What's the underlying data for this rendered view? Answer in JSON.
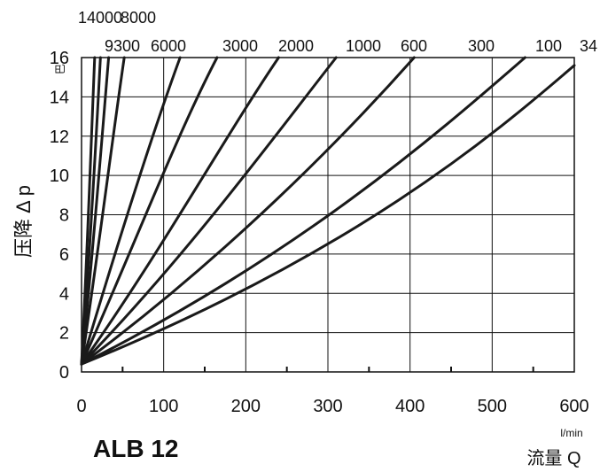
{
  "chart_data": {
    "type": "line",
    "title": "ALB 12",
    "xlabel": "流量 Q",
    "ylabel": "压降 Δ p",
    "x_unit": "l/min",
    "y_unit": "巴",
    "xlim": [
      0,
      600
    ],
    "ylim": [
      0,
      16
    ],
    "grid": true,
    "x_ticks": [
      "0",
      "100",
      "200",
      "300",
      "400",
      "500",
      "600"
    ],
    "y_ticks": [
      "0",
      "2",
      "4",
      "6",
      "8",
      "10",
      "12",
      "14",
      "16"
    ],
    "series": [
      {
        "name": "14000",
        "x": [
          0,
          7,
          12,
          16
        ],
        "y": [
          0.4,
          6,
          12,
          16
        ]
      },
      {
        "name": "8000",
        "x": [
          0,
          10,
          18,
          23
        ],
        "y": [
          0.4,
          6,
          12,
          16
        ]
      },
      {
        "name": "9300",
        "x": [
          0,
          14,
          25,
          33
        ],
        "y": [
          0.4,
          6,
          12,
          16
        ]
      },
      {
        "name": "6000",
        "x": [
          0,
          20,
          38,
          52
        ],
        "y": [
          0.4,
          6,
          12,
          16
        ]
      },
      {
        "name": "3000",
        "x": [
          0,
          40,
          85,
          120
        ],
        "y": [
          0.4,
          6,
          12,
          16
        ]
      },
      {
        "name": "2000",
        "x": [
          0,
          60,
          115,
          165
        ],
        "y": [
          0.4,
          6,
          12,
          16
        ]
      },
      {
        "name": "1000",
        "x": [
          0,
          95,
          175,
          240
        ],
        "y": [
          0.4,
          6,
          12,
          16
        ]
      },
      {
        "name": "600",
        "x": [
          0,
          130,
          235,
          310
        ],
        "y": [
          0.4,
          6,
          12,
          16
        ]
      },
      {
        "name": "300",
        "x": [
          0,
          180,
          320,
          405
        ],
        "y": [
          0.4,
          6,
          12,
          16
        ]
      },
      {
        "name": "100",
        "x": [
          0,
          265,
          430,
          540
        ],
        "y": [
          0.4,
          6,
          12,
          16
        ]
      },
      {
        "name": "34",
        "x": [
          0,
          330,
          500,
          600
        ],
        "y": [
          0.4,
          6,
          12,
          15.6
        ]
      }
    ],
    "top_labels": [
      "14000",
      "8000",
      "9300",
      "6000",
      "3000",
      "2000",
      "1000",
      "600",
      "300",
      "100",
      "34"
    ]
  }
}
